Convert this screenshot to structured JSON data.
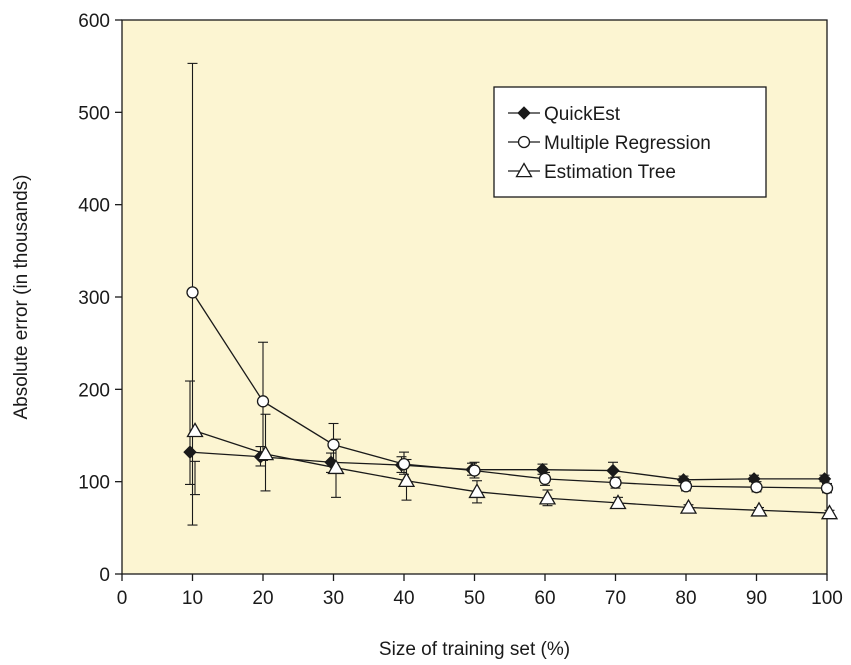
{
  "chart_data": {
    "type": "line",
    "title": "",
    "xlabel": "Size of training set (%)",
    "ylabel": "Absolute error (in thousands)",
    "xlim": [
      0,
      100
    ],
    "ylim": [
      0,
      600
    ],
    "x_ticks": [
      0,
      10,
      20,
      30,
      40,
      50,
      60,
      70,
      80,
      90,
      100
    ],
    "y_ticks": [
      0,
      100,
      200,
      300,
      400,
      500,
      600
    ],
    "grid": false,
    "legend_position": "top-right",
    "plot_background": "#fcf5d2",
    "series": [
      {
        "name": "QuickEst",
        "marker": "diamond-filled",
        "x": [
          10,
          20,
          30,
          40,
          50,
          60,
          70,
          80,
          90,
          100
        ],
        "y": [
          132,
          127,
          121,
          118,
          113,
          113,
          112,
          102,
          103,
          103
        ],
        "err_low": [
          97,
          117,
          110,
          110,
          107,
          108,
          104,
          99,
          100,
          100
        ],
        "err_high": [
          209,
          138,
          131,
          127,
          120,
          119,
          121,
          106,
          107,
          107
        ]
      },
      {
        "name": "Multiple Regression",
        "marker": "circle-open",
        "x": [
          10,
          20,
          30,
          40,
          50,
          60,
          70,
          80,
          90,
          100
        ],
        "y": [
          305,
          187,
          140,
          119,
          112,
          103,
          99,
          95,
          94,
          93
        ],
        "err_low": [
          53,
          123,
          117,
          108,
          104,
          96,
          93,
          90,
          89,
          88
        ],
        "err_high": [
          553,
          251,
          163,
          132,
          121,
          110,
          105,
          100,
          100,
          98
        ]
      },
      {
        "name": "Estimation Tree",
        "marker": "triangle-open",
        "x": [
          10,
          20,
          30,
          40,
          50,
          60,
          70,
          80,
          90,
          100
        ],
        "y": [
          155,
          130,
          115,
          101,
          89,
          82,
          77,
          72,
          69,
          66
        ],
        "err_low": [
          86,
          90,
          83,
          80,
          77,
          74,
          72,
          69,
          66,
          63
        ],
        "err_high": [
          122,
          173,
          146,
          124,
          101,
          91,
          83,
          75,
          72,
          69
        ]
      }
    ]
  }
}
